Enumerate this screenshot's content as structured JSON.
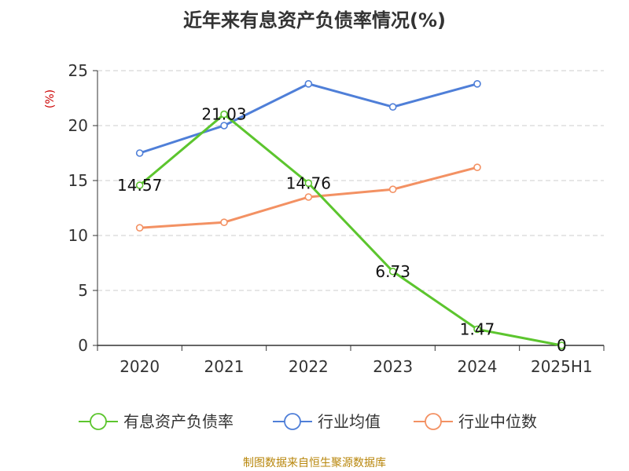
{
  "chart_data": {
    "type": "line",
    "title": "近年来有息资产负债率情况(%)",
    "ylabel": "(%)",
    "categories": [
      "2020",
      "2021",
      "2022",
      "2023",
      "2024",
      "2025H1"
    ],
    "ylim": [
      0,
      25
    ],
    "yticks": [
      0,
      5,
      10,
      15,
      20,
      25
    ],
    "grid": true,
    "legend_position": "bottom",
    "series": [
      {
        "name": "有息资产负债率",
        "color": "#5cc52e",
        "values": [
          14.57,
          21.03,
          14.76,
          6.73,
          1.47,
          0
        ],
        "labels": [
          "14.57",
          "21.03",
          "14.76",
          "6.73",
          "1.47",
          "0"
        ]
      },
      {
        "name": "行业均值",
        "color": "#4f7fd8",
        "values": [
          17.5,
          20.0,
          23.8,
          21.7,
          23.8,
          null
        ]
      },
      {
        "name": "行业中位数",
        "color": "#f39163",
        "values": [
          10.7,
          11.2,
          13.5,
          14.2,
          16.2,
          null
        ]
      }
    ]
  },
  "source": "制图数据来自恒生聚源数据库"
}
